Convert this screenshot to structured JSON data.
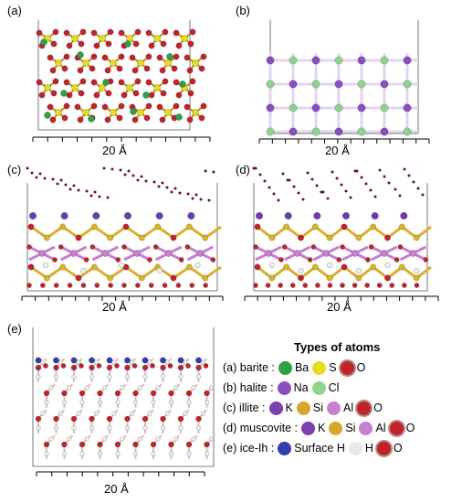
{
  "panels": {
    "a": {
      "label": "(a)",
      "scale": "20 Å"
    },
    "b": {
      "label": "(b)",
      "scale": "20 Å"
    },
    "c": {
      "label": "(c)",
      "scale": "20 Å"
    },
    "d": {
      "label": "(d)",
      "scale": "20 Å"
    },
    "e": {
      "label": "(e)",
      "scale": "20 Å"
    }
  },
  "legend": {
    "title": "Types of atoms",
    "rows": [
      {
        "label": "(a) barite :",
        "atoms": [
          {
            "name": "Ba",
            "color": "#2fa043"
          },
          {
            "name": "S",
            "color": "#e6dc1e"
          },
          {
            "name": "O",
            "color": "#c0242a"
          }
        ]
      },
      {
        "label": "(b) halite :",
        "atoms": [
          {
            "name": "Na",
            "color": "#8a4fbf"
          },
          {
            "name": "Cl",
            "color": "#8fd48c"
          }
        ]
      },
      {
        "label": "(c) illite :",
        "atoms": [
          {
            "name": "K",
            "color": "#7b3fb0"
          },
          {
            "name": "Si",
            "color": "#d9a52b"
          },
          {
            "name": "Al",
            "color": "#c77fd0"
          },
          {
            "name": "O",
            "color": "#c0242a"
          }
        ]
      },
      {
        "label": "(d) muscovite :",
        "atoms": [
          {
            "name": "K",
            "color": "#7b3fb0"
          },
          {
            "name": "Si",
            "color": "#d9a52b"
          },
          {
            "name": "Al",
            "color": "#c77fd0"
          },
          {
            "name": "O",
            "color": "#c0242a"
          }
        ]
      },
      {
        "label": "(e) ice-Ih :",
        "atoms": [
          {
            "name": "Surface H",
            "color": "#2f3fb0"
          },
          {
            "name": "H",
            "color": "#e8e8e8"
          },
          {
            "name": "O",
            "color": "#c0242a"
          }
        ]
      }
    ]
  }
}
